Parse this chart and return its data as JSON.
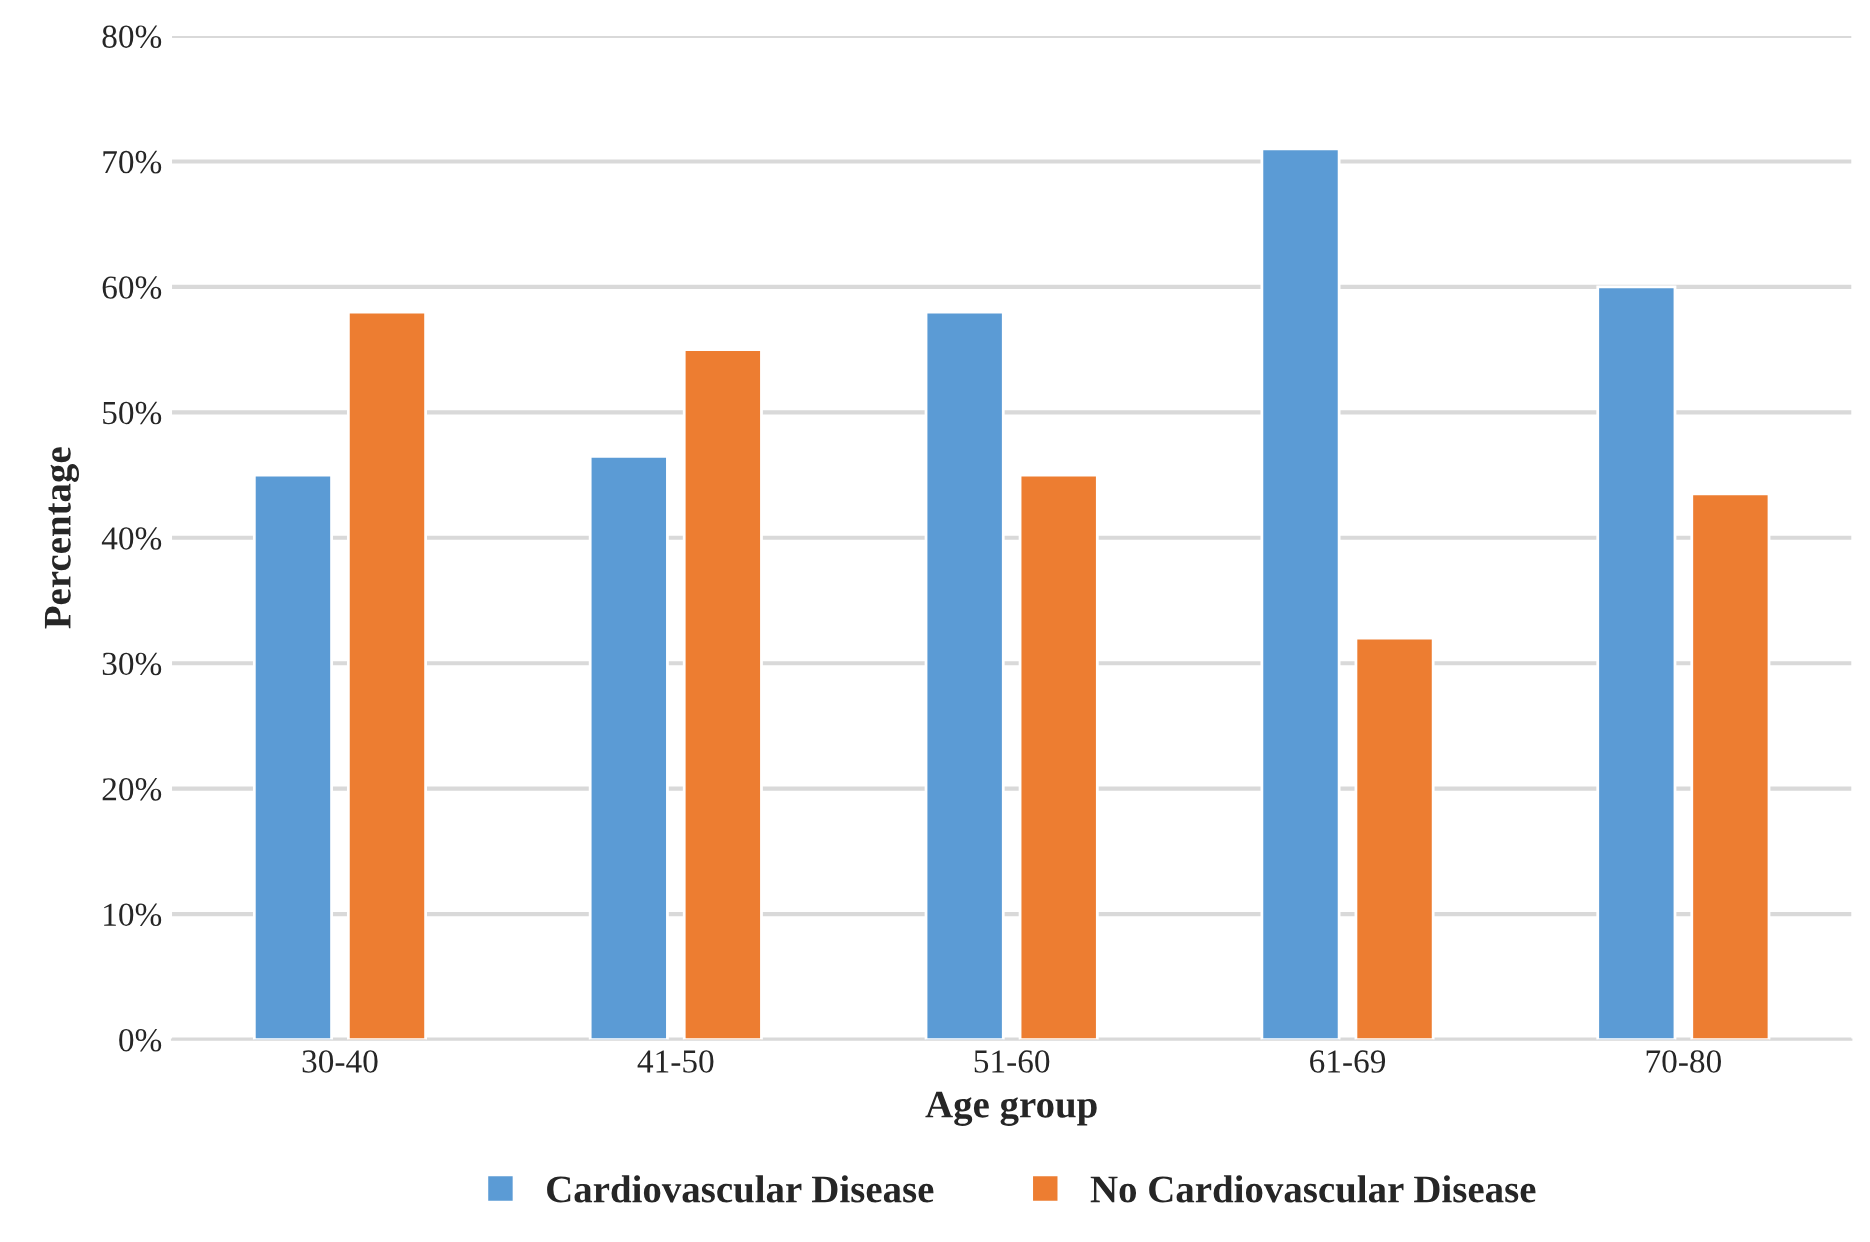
{
  "chart_data": {
    "type": "bar",
    "xlabel": "Age group",
    "ylabel": "Percentage",
    "categories": [
      "30-40",
      "41-50",
      "51-60",
      "61-69",
      "70-80"
    ],
    "series": [
      {
        "name": "Cardiovascular Disease",
        "color": "#5b9bd5",
        "values": [
          45,
          46.5,
          58,
          71,
          60
        ]
      },
      {
        "name": "No Cardiovascular Disease",
        "color": "#ed7d31",
        "values": [
          58,
          55,
          45,
          32,
          43.5
        ]
      }
    ],
    "ylim": [
      0,
      80
    ],
    "yticks": [
      {
        "value": 0,
        "label": "0%"
      },
      {
        "value": 10,
        "label": "10%"
      },
      {
        "value": 20,
        "label": "20%"
      },
      {
        "value": 30,
        "label": "30%"
      },
      {
        "value": 40,
        "label": "40%"
      },
      {
        "value": 50,
        "label": "50%"
      },
      {
        "value": 60,
        "label": "60%"
      },
      {
        "value": 70,
        "label": "70%"
      },
      {
        "value": 80,
        "label": "80%"
      }
    ],
    "grid": "y",
    "legend": "bottom"
  }
}
